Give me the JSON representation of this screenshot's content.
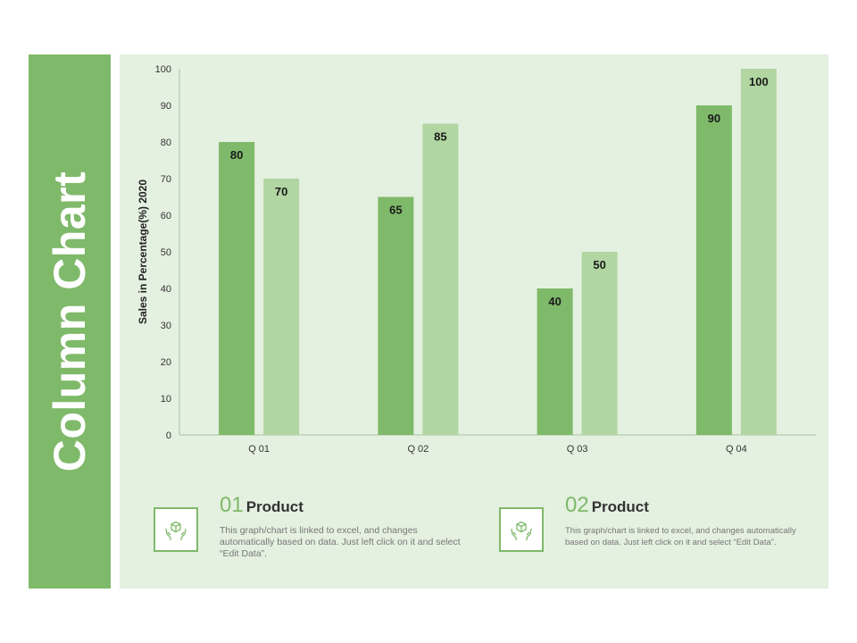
{
  "slide_title": "Column Chart",
  "colors": {
    "band": "#7fb96a",
    "panel": "#e4f0e0",
    "series_dark": "#7fb96a",
    "series_light": "#b1d6a1"
  },
  "chart_data": {
    "type": "bar",
    "categories": [
      "Q 01",
      "Q 02",
      "Q 03",
      "Q 04"
    ],
    "series": [
      {
        "values": [
          80,
          65,
          40,
          90
        ]
      },
      {
        "values": [
          70,
          85,
          50,
          100
        ]
      }
    ],
    "ylabel": "Sales in Percentage(%) 2020",
    "xlabel": "",
    "ylim": [
      0,
      100
    ],
    "yticks": [
      0,
      10,
      20,
      30,
      40,
      50,
      60,
      70,
      80,
      90,
      100
    ],
    "grid": false,
    "data_labels": true
  },
  "cards": [
    {
      "number": "01",
      "title": "Product",
      "description": "This graph/chart is linked to excel, and changes automatically based on data. Just left click on it and select “Edit Data”.",
      "icon": "hands-box-icon"
    },
    {
      "number": "02",
      "title": "Product",
      "description": "This graph/chart is linked to excel, and changes automatically based on data. Just left click on it and select “Edit Data”.",
      "icon": "hands-box-icon"
    }
  ]
}
